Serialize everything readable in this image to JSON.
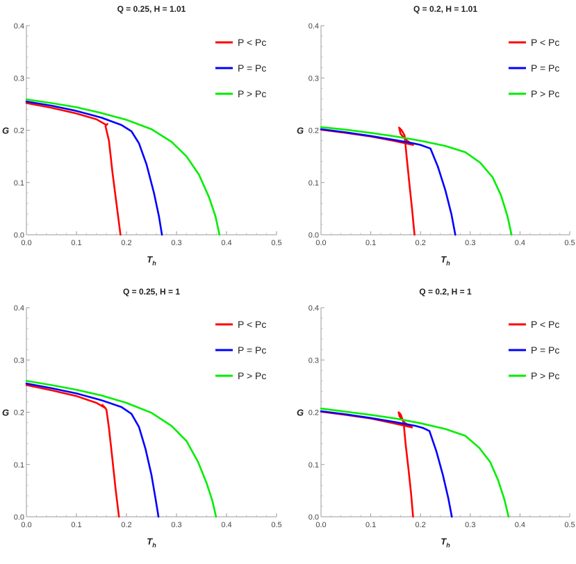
{
  "chart_data": [
    {
      "type": "line",
      "title": "Q = 0.25, H = 1.01",
      "xlabel": "T",
      "xlabel_sub": "h",
      "ylabel": "G",
      "xlim": [
        0,
        0.5
      ],
      "ylim": [
        0,
        0.4
      ],
      "xticks": [
        "0.0",
        "0.1",
        "0.2",
        "0.3",
        "0.4",
        "0.5"
      ],
      "yticks": [
        "0.0",
        "0.1",
        "0.2",
        "0.3",
        "0.4"
      ],
      "legend_position": "top-right",
      "series": [
        {
          "name": "P < Pc",
          "color": "#ff0000",
          "points": [
            [
              0,
              0.252
            ],
            [
              0.05,
              0.243
            ],
            [
              0.1,
              0.232
            ],
            [
              0.14,
              0.221
            ],
            [
              0.16,
              0.21
            ],
            [
              0.162,
              0.212
            ],
            [
              0.158,
              0.208
            ],
            [
              0.165,
              0.18
            ],
            [
              0.172,
              0.12
            ],
            [
              0.18,
              0.06
            ],
            [
              0.188,
              0.0
            ]
          ]
        },
        {
          "name": "P = Pc",
          "color": "#0000ff",
          "points": [
            [
              0,
              0.255
            ],
            [
              0.05,
              0.247
            ],
            [
              0.1,
              0.237
            ],
            [
              0.15,
              0.224
            ],
            [
              0.19,
              0.21
            ],
            [
              0.21,
              0.198
            ],
            [
              0.225,
              0.175
            ],
            [
              0.24,
              0.135
            ],
            [
              0.255,
              0.08
            ],
            [
              0.265,
              0.035
            ],
            [
              0.271,
              0.0
            ]
          ]
        },
        {
          "name": "P > Pc",
          "color": "#00ee00",
          "points": [
            [
              0,
              0.259
            ],
            [
              0.05,
              0.252
            ],
            [
              0.1,
              0.244
            ],
            [
              0.15,
              0.233
            ],
            [
              0.2,
              0.22
            ],
            [
              0.25,
              0.202
            ],
            [
              0.29,
              0.178
            ],
            [
              0.32,
              0.15
            ],
            [
              0.345,
              0.115
            ],
            [
              0.365,
              0.072
            ],
            [
              0.378,
              0.035
            ],
            [
              0.386,
              0.0
            ]
          ]
        }
      ]
    },
    {
      "type": "line",
      "title": "Q = 0.2, H = 1.01",
      "xlabel": "T",
      "xlabel_sub": "h",
      "ylabel": "G",
      "xlim": [
        0,
        0.5
      ],
      "ylim": [
        0,
        0.4
      ],
      "xticks": [
        "0.0",
        "0.1",
        "0.2",
        "0.3",
        "0.4",
        "0.5"
      ],
      "yticks": [
        "0.0",
        "0.1",
        "0.2",
        "0.3",
        "0.4"
      ],
      "legend_position": "top-right",
      "series": [
        {
          "name": "P < Pc",
          "color": "#ff0000",
          "points": [
            [
              0,
              0.201
            ],
            [
              0.05,
              0.195
            ],
            [
              0.1,
              0.188
            ],
            [
              0.14,
              0.181
            ],
            [
              0.165,
              0.176
            ],
            [
              0.185,
              0.172
            ],
            [
              0.17,
              0.182
            ],
            [
              0.16,
              0.193
            ],
            [
              0.157,
              0.205
            ],
            [
              0.162,
              0.2
            ],
            [
              0.168,
              0.19
            ],
            [
              0.172,
              0.15
            ],
            [
              0.178,
              0.095
            ],
            [
              0.183,
              0.05
            ],
            [
              0.188,
              0.0
            ]
          ]
        },
        {
          "name": "P = Pc",
          "color": "#0000ff",
          "points": [
            [
              0,
              0.202
            ],
            [
              0.05,
              0.196
            ],
            [
              0.1,
              0.189
            ],
            [
              0.15,
              0.181
            ],
            [
              0.185,
              0.175
            ],
            [
              0.2,
              0.172
            ],
            [
              0.22,
              0.165
            ],
            [
              0.235,
              0.13
            ],
            [
              0.25,
              0.085
            ],
            [
              0.262,
              0.04
            ],
            [
              0.27,
              0.0
            ]
          ]
        },
        {
          "name": "P > Pc",
          "color": "#00ee00",
          "points": [
            [
              0,
              0.206
            ],
            [
              0.05,
              0.201
            ],
            [
              0.1,
              0.195
            ],
            [
              0.15,
              0.188
            ],
            [
              0.2,
              0.18
            ],
            [
              0.25,
              0.17
            ],
            [
              0.29,
              0.158
            ],
            [
              0.32,
              0.138
            ],
            [
              0.345,
              0.11
            ],
            [
              0.362,
              0.075
            ],
            [
              0.375,
              0.035
            ],
            [
              0.383,
              0.0
            ]
          ]
        }
      ]
    },
    {
      "type": "line",
      "title": "Q = 0.25, H = 1",
      "xlabel": "T",
      "xlabel_sub": "h",
      "ylabel": "G",
      "xlim": [
        0,
        0.5
      ],
      "ylim": [
        0,
        0.4
      ],
      "xticks": [
        "0.0",
        "0.1",
        "0.2",
        "0.3",
        "0.4",
        "0.5"
      ],
      "yticks": [
        "0.0",
        "0.1",
        "0.2",
        "0.3",
        "0.4"
      ],
      "legend_position": "top-right",
      "series": [
        {
          "name": "P < Pc",
          "color": "#ff0000",
          "points": [
            [
              0,
              0.252
            ],
            [
              0.05,
              0.242
            ],
            [
              0.1,
              0.231
            ],
            [
              0.14,
              0.218
            ],
            [
              0.158,
              0.208
            ],
            [
              0.152,
              0.214
            ],
            [
              0.16,
              0.205
            ],
            [
              0.165,
              0.17
            ],
            [
              0.172,
              0.11
            ],
            [
              0.178,
              0.055
            ],
            [
              0.185,
              0.0
            ]
          ]
        },
        {
          "name": "P = Pc",
          "color": "#0000ff",
          "points": [
            [
              0,
              0.255
            ],
            [
              0.05,
              0.246
            ],
            [
              0.1,
              0.236
            ],
            [
              0.15,
              0.223
            ],
            [
              0.19,
              0.21
            ],
            [
              0.21,
              0.197
            ],
            [
              0.225,
              0.172
            ],
            [
              0.238,
              0.13
            ],
            [
              0.25,
              0.08
            ],
            [
              0.258,
              0.035
            ],
            [
              0.264,
              0.0
            ]
          ]
        },
        {
          "name": "P > Pc",
          "color": "#00ee00",
          "points": [
            [
              0,
              0.26
            ],
            [
              0.05,
              0.252
            ],
            [
              0.1,
              0.243
            ],
            [
              0.15,
              0.232
            ],
            [
              0.2,
              0.218
            ],
            [
              0.25,
              0.199
            ],
            [
              0.29,
              0.174
            ],
            [
              0.32,
              0.145
            ],
            [
              0.343,
              0.105
            ],
            [
              0.36,
              0.065
            ],
            [
              0.372,
              0.03
            ],
            [
              0.379,
              0.0
            ]
          ]
        }
      ]
    },
    {
      "type": "line",
      "title": "Q = 0.2, H = 1",
      "xlabel": "T",
      "xlabel_sub": "h",
      "ylabel": "G",
      "xlim": [
        0,
        0.5
      ],
      "ylim": [
        0,
        0.4
      ],
      "xticks": [
        "0.0",
        "0.1",
        "0.2",
        "0.3",
        "0.4",
        "0.5"
      ],
      "yticks": [
        "0.0",
        "0.1",
        "0.2",
        "0.3",
        "0.4"
      ],
      "legend_position": "top-right",
      "series": [
        {
          "name": "P < Pc",
          "color": "#ff0000",
          "points": [
            [
              0,
              0.201
            ],
            [
              0.05,
              0.195
            ],
            [
              0.1,
              0.188
            ],
            [
              0.14,
              0.18
            ],
            [
              0.165,
              0.175
            ],
            [
              0.183,
              0.171
            ],
            [
              0.168,
              0.18
            ],
            [
              0.158,
              0.192
            ],
            [
              0.156,
              0.2
            ],
            [
              0.16,
              0.196
            ],
            [
              0.166,
              0.18
            ],
            [
              0.17,
              0.14
            ],
            [
              0.176,
              0.09
            ],
            [
              0.181,
              0.045
            ],
            [
              0.185,
              0.0
            ]
          ]
        },
        {
          "name": "P = Pc",
          "color": "#0000ff",
          "points": [
            [
              0,
              0.202
            ],
            [
              0.05,
              0.196
            ],
            [
              0.1,
              0.189
            ],
            [
              0.15,
              0.181
            ],
            [
              0.19,
              0.174
            ],
            [
              0.205,
              0.17
            ],
            [
              0.218,
              0.164
            ],
            [
              0.232,
              0.125
            ],
            [
              0.245,
              0.08
            ],
            [
              0.256,
              0.035
            ],
            [
              0.263,
              0.0
            ]
          ]
        },
        {
          "name": "P > Pc",
          "color": "#00ee00",
          "points": [
            [
              0,
              0.207
            ],
            [
              0.05,
              0.201
            ],
            [
              0.1,
              0.195
            ],
            [
              0.15,
              0.188
            ],
            [
              0.2,
              0.179
            ],
            [
              0.25,
              0.168
            ],
            [
              0.29,
              0.155
            ],
            [
              0.318,
              0.132
            ],
            [
              0.34,
              0.105
            ],
            [
              0.356,
              0.07
            ],
            [
              0.369,
              0.032
            ],
            [
              0.377,
              0.0
            ]
          ]
        }
      ]
    }
  ]
}
